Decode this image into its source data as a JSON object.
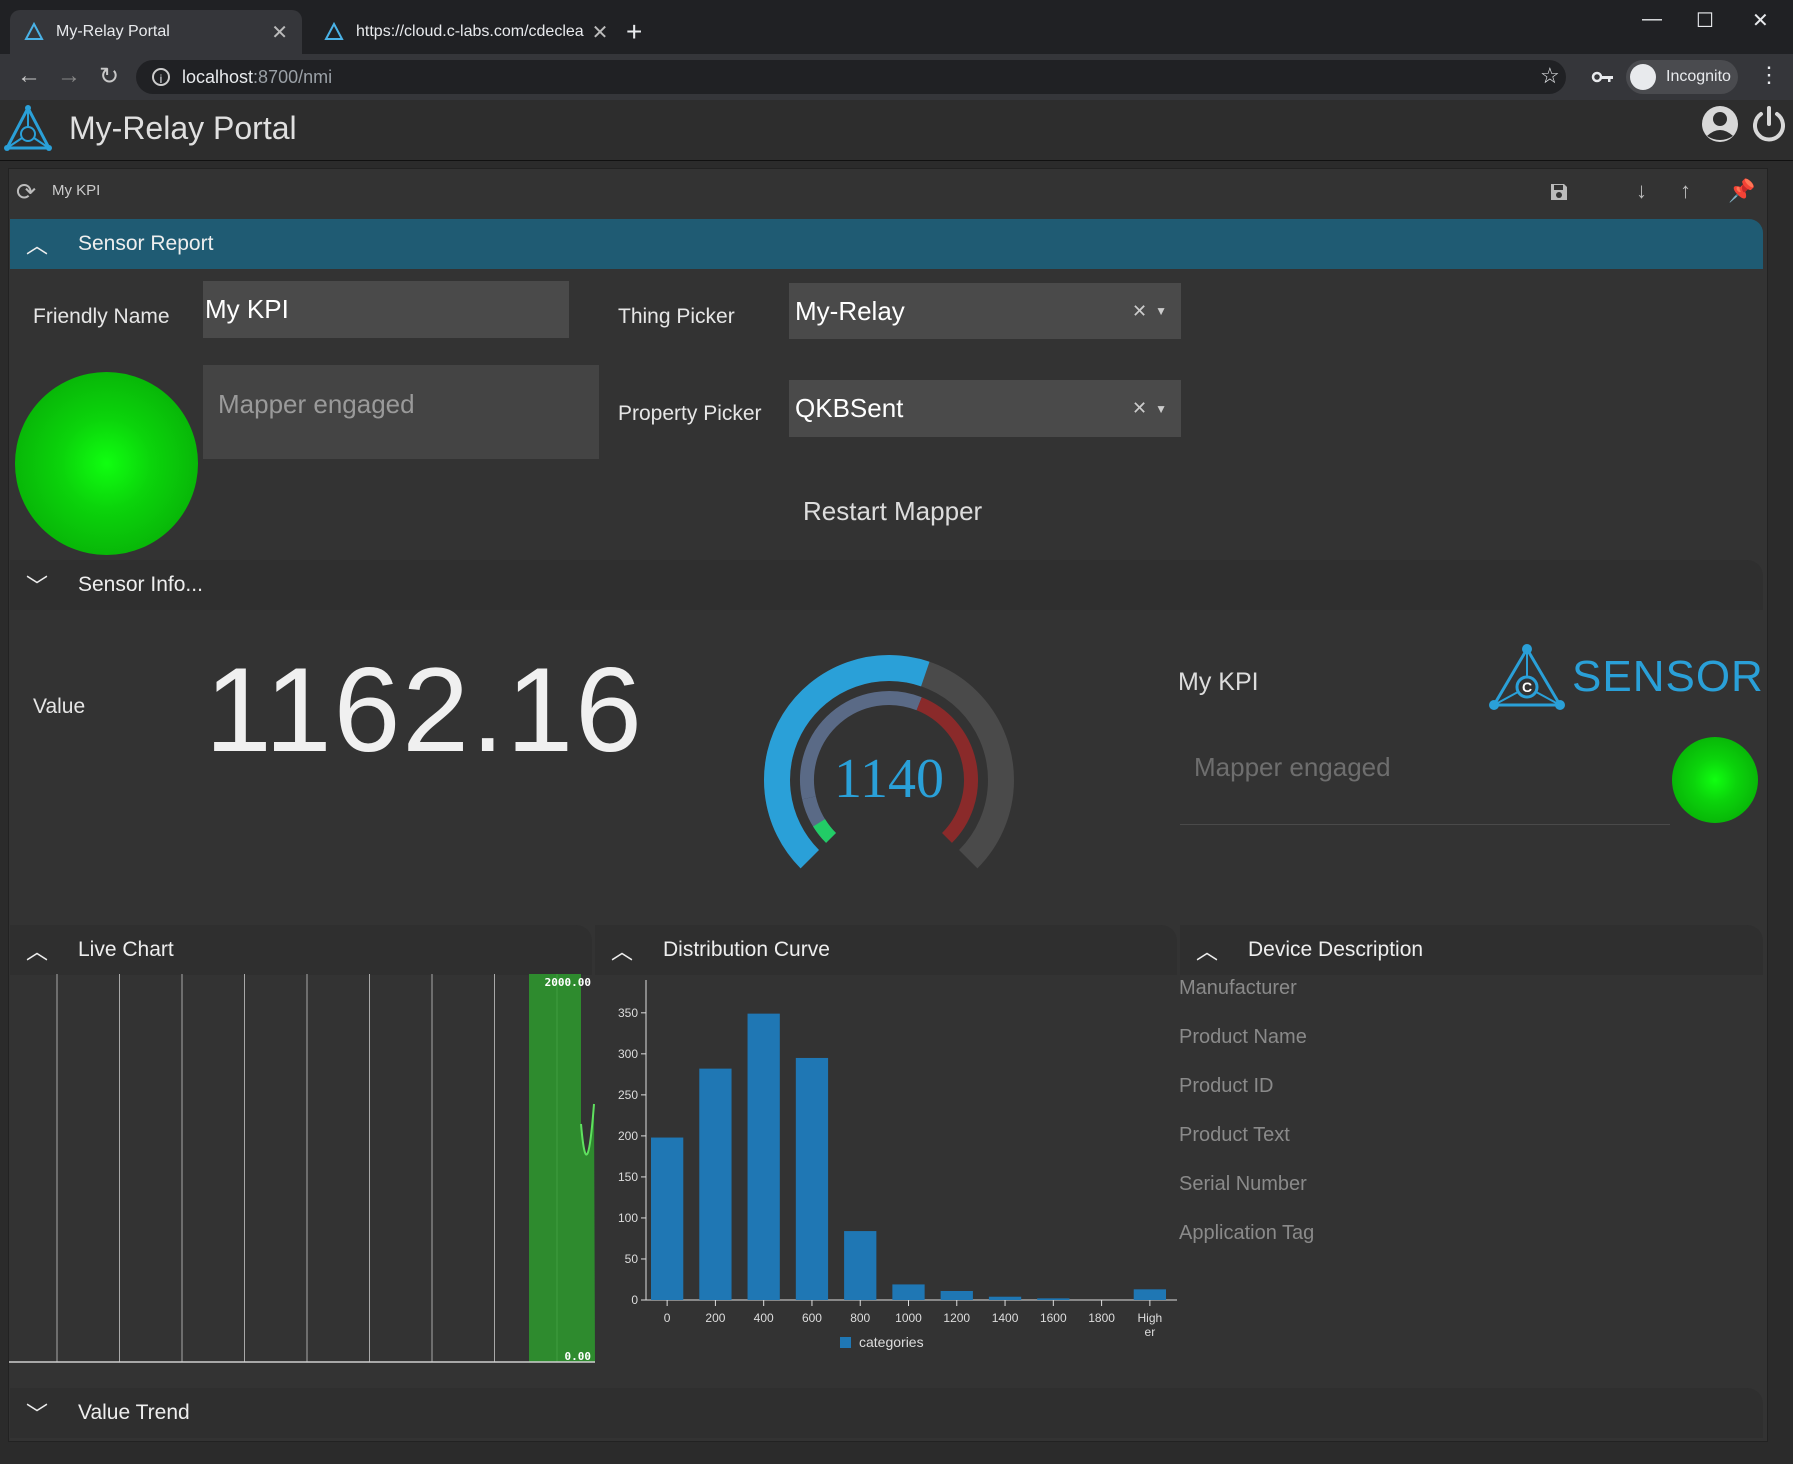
{
  "browser": {
    "tabs": [
      {
        "label": "My-Relay Portal",
        "active": true
      },
      {
        "label": "https://cloud.c-labs.com/cdeclea",
        "active": false
      }
    ],
    "new_tab": "+",
    "url_host": "localhost",
    "url_path": ":8700/nmi",
    "incognito_label": "Incognito"
  },
  "app": {
    "title": "My-Relay Portal"
  },
  "kpi_bar": {
    "title": "My KPI"
  },
  "sensor_report": {
    "header": "Sensor Report",
    "friendly_name_label": "Friendly Name",
    "friendly_name_value": "My KPI",
    "status_text_placeholder": "Mapper engaged",
    "thing_picker_label": "Thing Picker",
    "thing_picker_value": "My-Relay",
    "property_picker_label": "Property Picker",
    "property_picker_value": "QKBSent",
    "restart_button": "Restart Mapper",
    "status_color": "#0bd40b"
  },
  "sensor_info": {
    "header": "Sensor Info...",
    "value_label": "Value",
    "value": "1162.16",
    "gauge_value": "1140",
    "gauge_fraction": 0.57,
    "kpi_name": "My KPI",
    "status_placeholder": "Mapper engaged",
    "logo_text": "SENSOR",
    "accent": "#2aa0d8"
  },
  "live_chart": {
    "header": "Live Chart",
    "max_label": "2000.00",
    "min_label": "0.00"
  },
  "distribution": {
    "header": "Distribution Curve",
    "legend": "categories"
  },
  "device_description": {
    "header": "Device Description",
    "fields": [
      "Manufacturer",
      "Product Name",
      "Product ID",
      "Product Text",
      "Serial Number",
      "Application Tag"
    ]
  },
  "value_trend": {
    "header": "Value Trend"
  },
  "chart_data": {
    "type": "bar",
    "categories": [
      "0",
      "200",
      "400",
      "600",
      "800",
      "1000",
      "1200",
      "1400",
      "1600",
      "1800",
      "Higher"
    ],
    "values": [
      198,
      282,
      349,
      295,
      84,
      19,
      11,
      4,
      2,
      0,
      13
    ],
    "title": "",
    "xlabel": "",
    "ylabel": "",
    "ylim": [
      0,
      390
    ],
    "yticks": [
      0,
      50,
      100,
      150,
      200,
      250,
      300,
      350
    ],
    "series": [
      {
        "name": "categories",
        "color": "#1f77b4"
      }
    ]
  }
}
